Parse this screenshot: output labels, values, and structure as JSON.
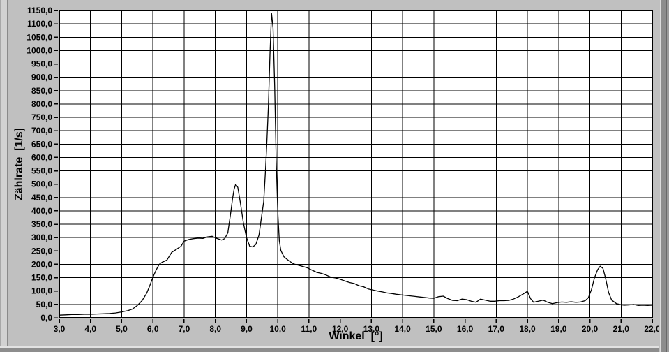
{
  "panel": {
    "background_color": "#c0c0c0",
    "plot_background_color": "#ffffff",
    "grid_color": "#000000",
    "curve_color": "#000000",
    "text_color": "#000000"
  },
  "chart_data": {
    "type": "line",
    "title": "",
    "xlabel": "Winkel  [°]",
    "ylabel": "Zählrate  [1/s]",
    "xlim": [
      3.0,
      22.0
    ],
    "ylim": [
      0.0,
      1150.0
    ],
    "x_tick_step": 1.0,
    "y_tick_step": 50.0,
    "x_tick_labels": [
      "3,0",
      "4,0",
      "5,0",
      "6,0",
      "7,0",
      "8,0",
      "9,0",
      "10,0",
      "11,0",
      "12,0",
      "13,0",
      "14,0",
      "15,0",
      "16,0",
      "17,0",
      "18,0",
      "19,0",
      "20,0",
      "21,0",
      "22,0"
    ],
    "y_tick_labels": [
      "0,0",
      "50,0",
      "100,0",
      "150,0",
      "200,0",
      "250,0",
      "300,0",
      "350,0",
      "400,0",
      "450,0",
      "500,0",
      "550,0",
      "600,0",
      "650,0",
      "700,0",
      "750,0",
      "800,0",
      "850,0",
      "900,0",
      "950,0",
      "1000,0",
      "1050,0",
      "1100,0",
      "1150,0"
    ],
    "decimal_separator": ",",
    "grid": true,
    "legend": false,
    "plot_bg": "#ffffff",
    "line_color": "#000000",
    "series": [
      {
        "name": "Zählrate",
        "points": [
          [
            3.0,
            10
          ],
          [
            3.2,
            11
          ],
          [
            3.4,
            12
          ],
          [
            3.6,
            12
          ],
          [
            3.8,
            13
          ],
          [
            4.0,
            13
          ],
          [
            4.2,
            14
          ],
          [
            4.4,
            15
          ],
          [
            4.6,
            16
          ],
          [
            4.8,
            18
          ],
          [
            5.0,
            22
          ],
          [
            5.2,
            27
          ],
          [
            5.35,
            33
          ],
          [
            5.5,
            46
          ],
          [
            5.65,
            64
          ],
          [
            5.8,
            92
          ],
          [
            5.9,
            120
          ],
          [
            6.0,
            152
          ],
          [
            6.1,
            178
          ],
          [
            6.2,
            200
          ],
          [
            6.3,
            208
          ],
          [
            6.45,
            216
          ],
          [
            6.6,
            245
          ],
          [
            6.75,
            256
          ],
          [
            6.9,
            268
          ],
          [
            7.0,
            287
          ],
          [
            7.15,
            293
          ],
          [
            7.3,
            296
          ],
          [
            7.45,
            298
          ],
          [
            7.6,
            297
          ],
          [
            7.75,
            303
          ],
          [
            7.9,
            305
          ],
          [
            8.0,
            299
          ],
          [
            8.1,
            295
          ],
          [
            8.2,
            291
          ],
          [
            8.3,
            296
          ],
          [
            8.4,
            318
          ],
          [
            8.5,
            400
          ],
          [
            8.55,
            445
          ],
          [
            8.6,
            480
          ],
          [
            8.65,
            500
          ],
          [
            8.72,
            488
          ],
          [
            8.8,
            432
          ],
          [
            8.9,
            355
          ],
          [
            9.0,
            300
          ],
          [
            9.1,
            268
          ],
          [
            9.2,
            265
          ],
          [
            9.3,
            275
          ],
          [
            9.4,
            310
          ],
          [
            9.5,
            395
          ],
          [
            9.55,
            435
          ],
          [
            9.6,
            540
          ],
          [
            9.65,
            655
          ],
          [
            9.7,
            790
          ],
          [
            9.75,
            985
          ],
          [
            9.8,
            1140
          ],
          [
            9.85,
            1085
          ],
          [
            9.9,
            870
          ],
          [
            9.95,
            590
          ],
          [
            10.0,
            395
          ],
          [
            10.05,
            288
          ],
          [
            10.1,
            252
          ],
          [
            10.2,
            228
          ],
          [
            10.35,
            214
          ],
          [
            10.5,
            202
          ],
          [
            10.65,
            197
          ],
          [
            10.8,
            192
          ],
          [
            10.95,
            187
          ],
          [
            11.1,
            178
          ],
          [
            11.25,
            170
          ],
          [
            11.4,
            166
          ],
          [
            11.55,
            160
          ],
          [
            11.7,
            152
          ],
          [
            11.85,
            149
          ],
          [
            12.0,
            144
          ],
          [
            12.15,
            138
          ],
          [
            12.3,
            132
          ],
          [
            12.45,
            128
          ],
          [
            12.6,
            120
          ],
          [
            12.75,
            116
          ],
          [
            12.9,
            108
          ],
          [
            13.05,
            104
          ],
          [
            13.2,
            100
          ],
          [
            13.35,
            97
          ],
          [
            13.5,
            93
          ],
          [
            13.65,
            91
          ],
          [
            13.8,
            88
          ],
          [
            13.95,
            86
          ],
          [
            14.1,
            84
          ],
          [
            14.25,
            82
          ],
          [
            14.4,
            80
          ],
          [
            14.55,
            78
          ],
          [
            14.7,
            76
          ],
          [
            14.85,
            74
          ],
          [
            15.0,
            73
          ],
          [
            15.15,
            79
          ],
          [
            15.3,
            81
          ],
          [
            15.45,
            72
          ],
          [
            15.6,
            65
          ],
          [
            15.75,
            64
          ],
          [
            15.9,
            70
          ],
          [
            16.05,
            68
          ],
          [
            16.2,
            62
          ],
          [
            16.35,
            58
          ],
          [
            16.5,
            70
          ],
          [
            16.65,
            66
          ],
          [
            16.8,
            62
          ],
          [
            16.95,
            62
          ],
          [
            17.1,
            64
          ],
          [
            17.25,
            64
          ],
          [
            17.4,
            65
          ],
          [
            17.55,
            70
          ],
          [
            17.7,
            78
          ],
          [
            17.85,
            88
          ],
          [
            18.0,
            99
          ],
          [
            18.1,
            72
          ],
          [
            18.2,
            58
          ],
          [
            18.35,
            62
          ],
          [
            18.5,
            66
          ],
          [
            18.65,
            58
          ],
          [
            18.8,
            53
          ],
          [
            18.95,
            57
          ],
          [
            19.1,
            59
          ],
          [
            19.25,
            58
          ],
          [
            19.4,
            60
          ],
          [
            19.55,
            58
          ],
          [
            19.7,
            59
          ],
          [
            19.85,
            64
          ],
          [
            19.95,
            75
          ],
          [
            20.05,
            105
          ],
          [
            20.15,
            150
          ],
          [
            20.25,
            180
          ],
          [
            20.33,
            193
          ],
          [
            20.42,
            185
          ],
          [
            20.5,
            150
          ],
          [
            20.6,
            95
          ],
          [
            20.7,
            66
          ],
          [
            20.85,
            53
          ],
          [
            21.0,
            49
          ],
          [
            21.1,
            47
          ],
          [
            21.25,
            48
          ],
          [
            21.4,
            50
          ],
          [
            21.55,
            46
          ],
          [
            21.7,
            47
          ],
          [
            21.85,
            46
          ],
          [
            22.0,
            47
          ]
        ]
      }
    ]
  }
}
